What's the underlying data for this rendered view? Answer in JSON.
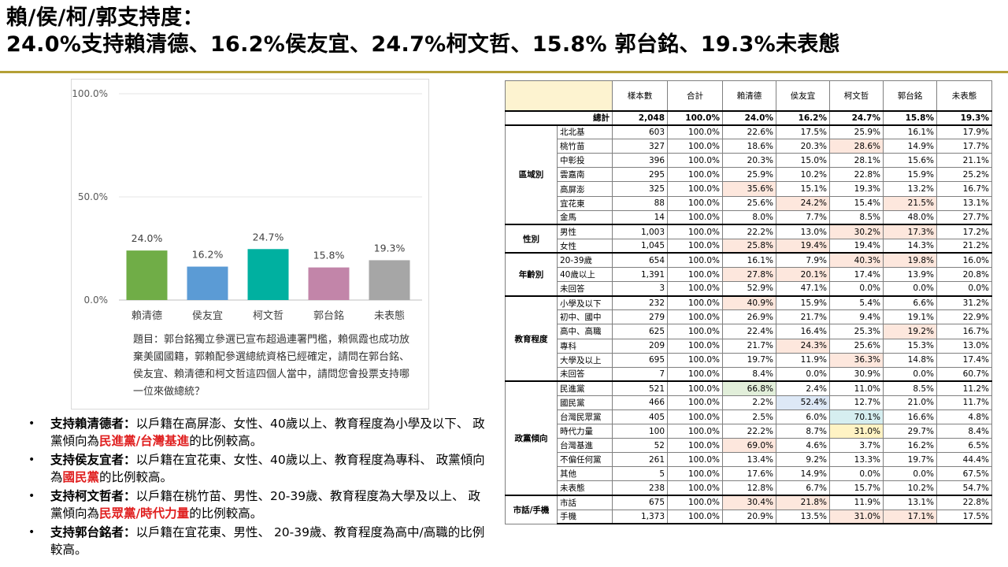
{
  "title": {
    "line1": "賴/侯/柯/郭支持度：",
    "line2": "24.0%支持賴清德、16.2%侯友宜、24.7%柯文哲、15.8% 郭台銘、19.3%未表態"
  },
  "colors": {
    "rule": "#b4a036",
    "accent_red": "#e02020"
  },
  "chart_data": {
    "type": "bar",
    "categories": [
      "賴清德",
      "侯友宜",
      "柯文哲",
      "郭台銘",
      "未表態"
    ],
    "values": [
      24.0,
      16.2,
      24.7,
      15.8,
      19.3
    ],
    "value_labels": [
      "24.0%",
      "16.2%",
      "24.7%",
      "15.8%",
      "19.3%"
    ],
    "colors": [
      "#70ad47",
      "#5b9bd5",
      "#00b0a0",
      "#c285a9",
      "#a6a6a6"
    ],
    "ylim": [
      0,
      100
    ],
    "yticks": [
      0,
      50,
      100
    ],
    "ytick_labels": [
      "0.0%",
      "50.0%",
      "100.0%"
    ],
    "title": "",
    "xlabel": "",
    "ylabel": ""
  },
  "question": "題目：郭台銘獨立參選已宣布超過連署門檻，賴佩霞也成功放棄美國國籍，郭賴配參選總統資格已經確定，請問在郭台銘、侯友宜、賴清德和柯文哲這四個人當中，請問您會投票支持哪一位來做總統？",
  "bullets": [
    {
      "bold": "支持賴清德者：",
      "text": "以戶籍在高屏澎、女性、40歲以上、教育程度為小學及以下、 政黨傾向為",
      "red": "民進黨/台灣基進",
      "tail": "的比例較高。"
    },
    {
      "bold": "支持侯友宜者：",
      "text": "以戶籍在宜花東、女性、40歲以上、教育程度為專科、 政黨傾向為",
      "red": "國民黨",
      "tail": "的比例較高。"
    },
    {
      "bold": "支持柯文哲者：",
      "text": "以戶籍在桃竹苗、男性、20-39歲、教育程度為大學及以上、 政黨傾向為",
      "red": "民眾黨/時代力量",
      "tail": "的比例較高。"
    },
    {
      "bold": "支持郭台銘者：",
      "text": "以戶籍在宜花東、男性、 20-39歲、教育程度為高中/高職的比例較高。",
      "red": "",
      "tail": ""
    }
  ],
  "table": {
    "headers": [
      "樣本數",
      "合計",
      "賴清德",
      "侯友宜",
      "柯文哲",
      "郭台銘",
      "未表態"
    ],
    "total": {
      "label": "總計",
      "values": [
        "2,048",
        "100.0%",
        "24.0%",
        "16.2%",
        "24.7%",
        "15.8%",
        "19.3%"
      ]
    },
    "groups": [
      {
        "name": "區域別",
        "rows": [
          {
            "label": "北北基",
            "values": [
              "603",
              "100.0%",
              "22.6%",
              "17.5%",
              "25.9%",
              "16.1%",
              "17.9%"
            ],
            "hl": [
              "",
              "",
              "",
              "",
              "",
              "",
              ""
            ]
          },
          {
            "label": "桃竹苗",
            "values": [
              "327",
              "100.0%",
              "18.6%",
              "20.3%",
              "28.6%",
              "14.9%",
              "17.7%"
            ],
            "hl": [
              "",
              "",
              "",
              "",
              "red",
              "",
              ""
            ]
          },
          {
            "label": "中彰投",
            "values": [
              "396",
              "100.0%",
              "20.3%",
              "15.0%",
              "28.1%",
              "15.6%",
              "21.1%"
            ],
            "hl": [
              "",
              "",
              "",
              "",
              "",
              "",
              ""
            ]
          },
          {
            "label": "雲嘉南",
            "values": [
              "295",
              "100.0%",
              "25.9%",
              "10.2%",
              "22.8%",
              "15.9%",
              "25.2%"
            ],
            "hl": [
              "",
              "",
              "",
              "",
              "",
              "",
              ""
            ]
          },
          {
            "label": "高屏澎",
            "values": [
              "325",
              "100.0%",
              "35.6%",
              "15.1%",
              "19.3%",
              "13.2%",
              "16.7%"
            ],
            "hl": [
              "",
              "",
              "red",
              "",
              "",
              "",
              ""
            ]
          },
          {
            "label": "宜花東",
            "values": [
              "88",
              "100.0%",
              "25.6%",
              "24.2%",
              "15.4%",
              "21.5%",
              "13.1%"
            ],
            "hl": [
              "",
              "",
              "",
              "red",
              "",
              "red",
              ""
            ]
          },
          {
            "label": "金馬",
            "values": [
              "14",
              "100.0%",
              "8.0%",
              "7.7%",
              "8.5%",
              "48.0%",
              "27.7%"
            ],
            "hl": [
              "",
              "",
              "",
              "",
              "",
              "",
              ""
            ]
          }
        ]
      },
      {
        "name": "性別",
        "rows": [
          {
            "label": "男性",
            "values": [
              "1,003",
              "100.0%",
              "22.2%",
              "13.0%",
              "30.2%",
              "17.3%",
              "17.2%"
            ],
            "hl": [
              "",
              "",
              "",
              "",
              "red",
              "red",
              ""
            ]
          },
          {
            "label": "女性",
            "values": [
              "1,045",
              "100.0%",
              "25.8%",
              "19.4%",
              "19.4%",
              "14.3%",
              "21.2%"
            ],
            "hl": [
              "",
              "",
              "red",
              "red",
              "",
              "",
              ""
            ]
          }
        ]
      },
      {
        "name": "年齡別",
        "rows": [
          {
            "label": "20-39歲",
            "values": [
              "654",
              "100.0%",
              "16.1%",
              "7.9%",
              "40.3%",
              "19.8%",
              "16.0%"
            ],
            "hl": [
              "",
              "",
              "",
              "",
              "red",
              "red",
              ""
            ]
          },
          {
            "label": "40歲以上",
            "values": [
              "1,391",
              "100.0%",
              "27.8%",
              "20.1%",
              "17.4%",
              "13.9%",
              "20.8%"
            ],
            "hl": [
              "",
              "",
              "red",
              "red",
              "",
              "",
              ""
            ]
          },
          {
            "label": "未回答",
            "values": [
              "3",
              "100.0%",
              "52.9%",
              "47.1%",
              "0.0%",
              "0.0%",
              "0.0%"
            ],
            "hl": [
              "",
              "",
              "",
              "",
              "",
              "",
              ""
            ]
          }
        ]
      },
      {
        "name": "教育程度",
        "rows": [
          {
            "label": "小學及以下",
            "values": [
              "232",
              "100.0%",
              "40.9%",
              "15.9%",
              "5.4%",
              "6.6%",
              "31.2%"
            ],
            "hl": [
              "",
              "",
              "red",
              "",
              "",
              "",
              ""
            ]
          },
          {
            "label": "初中、國中",
            "values": [
              "279",
              "100.0%",
              "26.9%",
              "21.7%",
              "9.4%",
              "19.1%",
              "22.9%"
            ],
            "hl": [
              "",
              "",
              "",
              "",
              "",
              "",
              ""
            ]
          },
          {
            "label": "高中、高職",
            "values": [
              "625",
              "100.0%",
              "22.4%",
              "16.4%",
              "25.3%",
              "19.2%",
              "16.7%"
            ],
            "hl": [
              "",
              "",
              "",
              "",
              "",
              "red",
              ""
            ]
          },
          {
            "label": "專科",
            "values": [
              "209",
              "100.0%",
              "21.7%",
              "24.3%",
              "25.6%",
              "15.3%",
              "13.0%"
            ],
            "hl": [
              "",
              "",
              "",
              "red",
              "",
              "",
              ""
            ]
          },
          {
            "label": "大學及以上",
            "values": [
              "695",
              "100.0%",
              "19.7%",
              "11.9%",
              "36.3%",
              "14.8%",
              "17.4%"
            ],
            "hl": [
              "",
              "",
              "",
              "",
              "red",
              "",
              ""
            ]
          },
          {
            "label": "未回答",
            "values": [
              "7",
              "100.0%",
              "8.4%",
              "0.0%",
              "30.9%",
              "0.0%",
              "60.7%"
            ],
            "hl": [
              "",
              "",
              "",
              "",
              "",
              "",
              ""
            ]
          }
        ]
      },
      {
        "name": "政黨傾向",
        "rows": [
          {
            "label": "民進黨",
            "values": [
              "521",
              "100.0%",
              "66.8%",
              "2.4%",
              "11.0%",
              "8.5%",
              "11.2%"
            ],
            "hl": [
              "",
              "",
              "green",
              "",
              "",
              "",
              ""
            ]
          },
          {
            "label": "國民黨",
            "values": [
              "466",
              "100.0%",
              "2.2%",
              "52.4%",
              "12.7%",
              "21.0%",
              "11.7%"
            ],
            "hl": [
              "",
              "",
              "",
              "blue",
              "",
              "",
              ""
            ]
          },
          {
            "label": "台灣民眾黨",
            "values": [
              "405",
              "100.0%",
              "2.5%",
              "6.0%",
              "70.1%",
              "16.6%",
              "4.8%"
            ],
            "hl": [
              "",
              "",
              "",
              "",
              "teal",
              "",
              ""
            ]
          },
          {
            "label": "時代力量",
            "values": [
              "100",
              "100.0%",
              "22.2%",
              "8.7%",
              "31.0%",
              "29.7%",
              "8.4%"
            ],
            "hl": [
              "",
              "",
              "",
              "",
              "yellow",
              "",
              ""
            ]
          },
          {
            "label": "台灣基進",
            "values": [
              "52",
              "100.0%",
              "69.0%",
              "4.6%",
              "3.7%",
              "16.2%",
              "6.5%"
            ],
            "hl": [
              "",
              "",
              "red",
              "",
              "",
              "",
              ""
            ]
          },
          {
            "label": "不偏任何黨",
            "values": [
              "261",
              "100.0%",
              "13.4%",
              "9.2%",
              "13.3%",
              "19.7%",
              "44.4%"
            ],
            "hl": [
              "",
              "",
              "",
              "",
              "",
              "",
              ""
            ]
          },
          {
            "label": "其他",
            "values": [
              "5",
              "100.0%",
              "17.6%",
              "14.9%",
              "0.0%",
              "0.0%",
              "67.5%"
            ],
            "hl": [
              "",
              "",
              "",
              "",
              "",
              "",
              ""
            ]
          },
          {
            "label": "未表態",
            "values": [
              "238",
              "100.0%",
              "12.8%",
              "6.7%",
              "15.7%",
              "10.2%",
              "54.7%"
            ],
            "hl": [
              "",
              "",
              "",
              "",
              "",
              "",
              ""
            ]
          }
        ]
      },
      {
        "name": "市話/手機",
        "rows": [
          {
            "label": "市話",
            "values": [
              "675",
              "100.0%",
              "30.4%",
              "21.8%",
              "11.9%",
              "13.1%",
              "22.8%"
            ],
            "hl": [
              "",
              "",
              "red",
              "red",
              "",
              "",
              ""
            ]
          },
          {
            "label": "手機",
            "values": [
              "1,373",
              "100.0%",
              "20.9%",
              "13.5%",
              "31.0%",
              "17.1%",
              "17.5%"
            ],
            "hl": [
              "",
              "",
              "",
              "",
              "red",
              "red",
              ""
            ]
          }
        ]
      }
    ]
  }
}
